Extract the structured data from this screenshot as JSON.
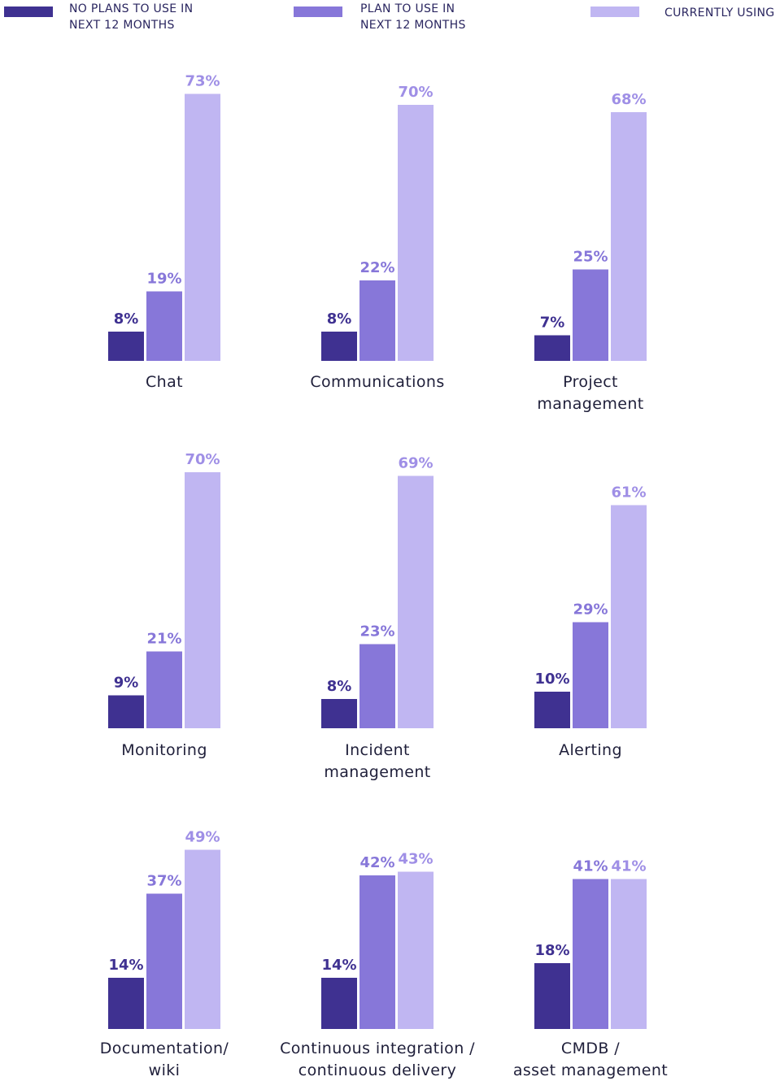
{
  "legend": [
    {
      "name": "NO PLANS TO USE IN\nNEXT 12 MONTHS",
      "color": "#3f3191"
    },
    {
      "name": "PLAN TO USE IN\nNEXT 12 MONTHS",
      "color": "#8777d9"
    },
    {
      "name": "CURRENTLY USING",
      "color": "#c0b6f2"
    }
  ],
  "chart_data": [
    {
      "type": "bar",
      "title": "Chat",
      "values": [
        8,
        19,
        73
      ],
      "value_labels": [
        "8%",
        "19%",
        "73%"
      ]
    },
    {
      "type": "bar",
      "title": "Communications",
      "values": [
        8,
        22,
        70
      ],
      "value_labels": [
        "8%",
        "22%",
        "70%"
      ]
    },
    {
      "type": "bar",
      "title": "Project\nmanagement",
      "values": [
        7,
        25,
        68
      ],
      "value_labels": [
        "7%",
        "25%",
        "68%"
      ]
    },
    {
      "type": "bar",
      "title": "Monitoring",
      "values": [
        9,
        21,
        70
      ],
      "value_labels": [
        "9%",
        "21%",
        "70%"
      ]
    },
    {
      "type": "bar",
      "title": "Incident\nmanagement",
      "values": [
        8,
        23,
        69
      ],
      "value_labels": [
        "8%",
        "23%",
        "69%"
      ]
    },
    {
      "type": "bar",
      "title": "Alerting",
      "values": [
        10,
        29,
        61
      ],
      "value_labels": [
        "10%",
        "29%",
        "61%"
      ]
    },
    {
      "type": "bar",
      "title": "Documentation/\nwiki",
      "values": [
        14,
        37,
        49
      ],
      "value_labels": [
        "14%",
        "37%",
        "49%"
      ]
    },
    {
      "type": "bar",
      "title": "Continuous integration /\ncontinuous delivery",
      "values": [
        14,
        42,
        43
      ],
      "value_labels": [
        "14%",
        "42%",
        "43%"
      ]
    },
    {
      "type": "bar",
      "title": "CMDB /\nasset management",
      "values": [
        18,
        41,
        41
      ],
      "value_labels": [
        "18%",
        "41%",
        "41%"
      ]
    }
  ]
}
